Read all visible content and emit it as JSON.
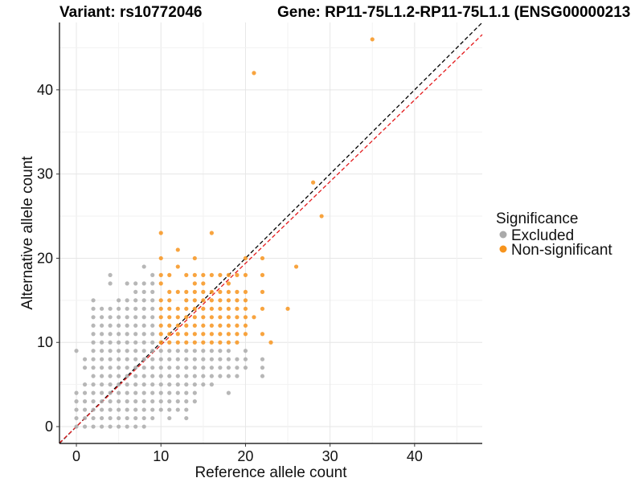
{
  "chart_data": {
    "type": "scatter",
    "title_left": "Variant: rs10772046",
    "title_right": "Gene: RP11-75L1.2-RP11-75L1.1 (ENSG00000213",
    "xlabel": "Reference allele count",
    "ylabel": "Alternative allele count",
    "xlim": [
      -2,
      48
    ],
    "ylim": [
      -2,
      48
    ],
    "x_ticks": [
      0,
      10,
      20,
      30,
      40
    ],
    "y_ticks": [
      0,
      10,
      20,
      30,
      40
    ],
    "grid": true,
    "legend": {
      "title": "Significance",
      "position": "right",
      "entries": [
        {
          "name": "Excluded",
          "color": "#aaaaaa"
        },
        {
          "name": "Non-significant",
          "color": "#f7941d"
        }
      ]
    },
    "reference_lines": [
      {
        "name": "identity",
        "slope": 1.0,
        "intercept": 0,
        "color": "#000000",
        "style": "dashed"
      },
      {
        "name": "fit",
        "slope": 0.97,
        "intercept": 0,
        "color": "#e41a1c",
        "style": "dashed"
      }
    ],
    "series": [
      {
        "name": "Excluded",
        "color": "#aaaaaa",
        "points": [
          [
            0,
            0
          ],
          [
            0,
            1
          ],
          [
            0,
            2
          ],
          [
            0,
            3
          ],
          [
            0,
            4
          ],
          [
            0,
            9
          ],
          [
            1,
            0
          ],
          [
            1,
            1
          ],
          [
            1,
            2
          ],
          [
            1,
            3
          ],
          [
            1,
            4
          ],
          [
            1,
            5
          ],
          [
            1,
            7
          ],
          [
            1,
            8
          ],
          [
            2,
            0
          ],
          [
            2,
            1
          ],
          [
            2,
            2
          ],
          [
            2,
            3
          ],
          [
            2,
            4
          ],
          [
            2,
            5
          ],
          [
            2,
            6
          ],
          [
            2,
            7
          ],
          [
            2,
            8
          ],
          [
            2,
            9
          ],
          [
            2,
            10
          ],
          [
            2,
            11
          ],
          [
            2,
            12
          ],
          [
            2,
            13
          ],
          [
            2,
            14
          ],
          [
            2,
            15
          ],
          [
            3,
            0
          ],
          [
            3,
            1
          ],
          [
            3,
            2
          ],
          [
            3,
            3
          ],
          [
            3,
            4
          ],
          [
            3,
            5
          ],
          [
            3,
            6
          ],
          [
            3,
            7
          ],
          [
            3,
            8
          ],
          [
            3,
            9
          ],
          [
            3,
            10
          ],
          [
            3,
            11
          ],
          [
            3,
            12
          ],
          [
            3,
            13
          ],
          [
            3,
            14
          ],
          [
            4,
            0
          ],
          [
            4,
            1
          ],
          [
            4,
            2
          ],
          [
            4,
            3
          ],
          [
            4,
            4
          ],
          [
            4,
            5
          ],
          [
            4,
            6
          ],
          [
            4,
            7
          ],
          [
            4,
            8
          ],
          [
            4,
            9
          ],
          [
            4,
            10
          ],
          [
            4,
            11
          ],
          [
            4,
            12
          ],
          [
            4,
            13
          ],
          [
            4,
            14
          ],
          [
            4,
            17
          ],
          [
            4,
            18
          ],
          [
            5,
            0
          ],
          [
            5,
            1
          ],
          [
            5,
            2
          ],
          [
            5,
            3
          ],
          [
            5,
            4
          ],
          [
            5,
            5
          ],
          [
            5,
            6
          ],
          [
            5,
            7
          ],
          [
            5,
            8
          ],
          [
            5,
            9
          ],
          [
            5,
            10
          ],
          [
            5,
            11
          ],
          [
            5,
            12
          ],
          [
            5,
            13
          ],
          [
            5,
            14
          ],
          [
            5,
            15
          ],
          [
            6,
            0
          ],
          [
            6,
            1
          ],
          [
            6,
            2
          ],
          [
            6,
            3
          ],
          [
            6,
            4
          ],
          [
            6,
            5
          ],
          [
            6,
            6
          ],
          [
            6,
            7
          ],
          [
            6,
            8
          ],
          [
            6,
            9
          ],
          [
            6,
            10
          ],
          [
            6,
            11
          ],
          [
            6,
            12
          ],
          [
            6,
            13
          ],
          [
            6,
            14
          ],
          [
            6,
            15
          ],
          [
            6,
            17
          ],
          [
            7,
            0
          ],
          [
            7,
            1
          ],
          [
            7,
            2
          ],
          [
            7,
            3
          ],
          [
            7,
            4
          ],
          [
            7,
            5
          ],
          [
            7,
            6
          ],
          [
            7,
            7
          ],
          [
            7,
            8
          ],
          [
            7,
            9
          ],
          [
            7,
            10
          ],
          [
            7,
            11
          ],
          [
            7,
            12
          ],
          [
            7,
            13
          ],
          [
            7,
            14
          ],
          [
            7,
            15
          ],
          [
            7,
            16
          ],
          [
            7,
            17
          ],
          [
            8,
            0
          ],
          [
            8,
            1
          ],
          [
            8,
            2
          ],
          [
            8,
            3
          ],
          [
            8,
            4
          ],
          [
            8,
            5
          ],
          [
            8,
            6
          ],
          [
            8,
            7
          ],
          [
            8,
            8
          ],
          [
            8,
            9
          ],
          [
            8,
            10
          ],
          [
            8,
            11
          ],
          [
            8,
            12
          ],
          [
            8,
            13
          ],
          [
            8,
            14
          ],
          [
            8,
            15
          ],
          [
            8,
            16
          ],
          [
            8,
            17
          ],
          [
            8,
            19
          ],
          [
            9,
            1
          ],
          [
            9,
            2
          ],
          [
            9,
            3
          ],
          [
            9,
            4
          ],
          [
            9,
            5
          ],
          [
            9,
            6
          ],
          [
            9,
            7
          ],
          [
            9,
            8
          ],
          [
            9,
            9
          ],
          [
            9,
            10
          ],
          [
            9,
            11
          ],
          [
            9,
            12
          ],
          [
            9,
            13
          ],
          [
            9,
            14
          ],
          [
            9,
            15
          ],
          [
            9,
            16
          ],
          [
            9,
            17
          ],
          [
            9,
            18
          ],
          [
            10,
            2
          ],
          [
            10,
            3
          ],
          [
            10,
            4
          ],
          [
            10,
            5
          ],
          [
            10,
            6
          ],
          [
            10,
            7
          ],
          [
            10,
            8
          ],
          [
            10,
            9
          ],
          [
            11,
            1
          ],
          [
            11,
            2
          ],
          [
            11,
            3
          ],
          [
            11,
            4
          ],
          [
            11,
            5
          ],
          [
            11,
            6
          ],
          [
            11,
            7
          ],
          [
            11,
            8
          ],
          [
            11,
            9
          ],
          [
            12,
            2
          ],
          [
            12,
            3
          ],
          [
            12,
            4
          ],
          [
            12,
            5
          ],
          [
            12,
            6
          ],
          [
            12,
            7
          ],
          [
            12,
            8
          ],
          [
            12,
            9
          ],
          [
            13,
            1
          ],
          [
            13,
            2
          ],
          [
            13,
            3
          ],
          [
            13,
            4
          ],
          [
            13,
            5
          ],
          [
            13,
            6
          ],
          [
            13,
            7
          ],
          [
            13,
            8
          ],
          [
            13,
            9
          ],
          [
            14,
            3
          ],
          [
            14,
            4
          ],
          [
            14,
            5
          ],
          [
            14,
            6
          ],
          [
            14,
            7
          ],
          [
            14,
            8
          ],
          [
            14,
            9
          ],
          [
            15,
            5
          ],
          [
            15,
            6
          ],
          [
            15,
            7
          ],
          [
            15,
            8
          ],
          [
            15,
            9
          ],
          [
            16,
            5
          ],
          [
            16,
            6
          ],
          [
            16,
            7
          ],
          [
            16,
            8
          ],
          [
            16,
            9
          ],
          [
            17,
            6
          ],
          [
            17,
            7
          ],
          [
            17,
            8
          ],
          [
            17,
            9
          ],
          [
            18,
            4
          ],
          [
            18,
            6
          ],
          [
            18,
            7
          ],
          [
            18,
            8
          ],
          [
            18,
            9
          ],
          [
            19,
            6
          ],
          [
            19,
            7
          ],
          [
            19,
            8
          ],
          [
            20,
            7
          ],
          [
            20,
            8
          ],
          [
            20,
            9
          ],
          [
            22,
            6
          ],
          [
            22,
            7
          ],
          [
            22,
            8
          ]
        ]
      },
      {
        "name": "Non-significant",
        "color": "#f7941d",
        "points": [
          [
            10,
            10
          ],
          [
            10,
            11
          ],
          [
            10,
            12
          ],
          [
            10,
            13
          ],
          [
            10,
            14
          ],
          [
            10,
            15
          ],
          [
            10,
            17
          ],
          [
            10,
            18
          ],
          [
            10,
            20
          ],
          [
            10,
            23
          ],
          [
            11,
            10
          ],
          [
            11,
            11
          ],
          [
            11,
            12
          ],
          [
            11,
            13
          ],
          [
            11,
            14
          ],
          [
            11,
            15
          ],
          [
            11,
            16
          ],
          [
            11,
            18
          ],
          [
            12,
            10
          ],
          [
            12,
            11
          ],
          [
            12,
            12
          ],
          [
            12,
            13
          ],
          [
            12,
            14
          ],
          [
            12,
            16
          ],
          [
            12,
            19
          ],
          [
            12,
            21
          ],
          [
            13,
            10
          ],
          [
            13,
            11
          ],
          [
            13,
            12
          ],
          [
            13,
            13
          ],
          [
            13,
            14
          ],
          [
            13,
            15
          ],
          [
            13,
            16
          ],
          [
            13,
            18
          ],
          [
            14,
            10
          ],
          [
            14,
            11
          ],
          [
            14,
            12
          ],
          [
            14,
            13
          ],
          [
            14,
            14
          ],
          [
            14,
            15
          ],
          [
            14,
            16
          ],
          [
            14,
            17
          ],
          [
            14,
            18
          ],
          [
            14,
            20
          ],
          [
            15,
            10
          ],
          [
            15,
            11
          ],
          [
            15,
            12
          ],
          [
            15,
            13
          ],
          [
            15,
            14
          ],
          [
            15,
            15
          ],
          [
            15,
            16
          ],
          [
            15,
            17
          ],
          [
            15,
            18
          ],
          [
            16,
            10
          ],
          [
            16,
            11
          ],
          [
            16,
            12
          ],
          [
            16,
            13
          ],
          [
            16,
            14
          ],
          [
            16,
            15
          ],
          [
            16,
            16
          ],
          [
            16,
            18
          ],
          [
            16,
            23
          ],
          [
            17,
            10
          ],
          [
            17,
            11
          ],
          [
            17,
            12
          ],
          [
            17,
            13
          ],
          [
            17,
            14
          ],
          [
            17,
            15
          ],
          [
            17,
            16
          ],
          [
            17,
            18
          ],
          [
            18,
            10
          ],
          [
            18,
            11
          ],
          [
            18,
            12
          ],
          [
            18,
            13
          ],
          [
            18,
            14
          ],
          [
            18,
            15
          ],
          [
            18,
            16
          ],
          [
            18,
            17
          ],
          [
            18,
            18
          ],
          [
            19,
            10
          ],
          [
            19,
            11
          ],
          [
            19,
            12
          ],
          [
            19,
            13
          ],
          [
            19,
            14
          ],
          [
            19,
            15
          ],
          [
            19,
            16
          ],
          [
            19,
            18
          ],
          [
            20,
            11
          ],
          [
            20,
            12
          ],
          [
            20,
            13
          ],
          [
            20,
            14
          ],
          [
            20,
            15
          ],
          [
            20,
            16
          ],
          [
            20,
            18
          ],
          [
            20,
            20
          ],
          [
            21,
            13
          ],
          [
            21,
            42
          ],
          [
            22,
            11
          ],
          [
            22,
            14
          ],
          [
            22,
            16
          ],
          [
            22,
            18
          ],
          [
            22,
            20
          ],
          [
            23,
            10
          ],
          [
            25,
            14
          ],
          [
            26,
            19
          ],
          [
            28,
            29
          ],
          [
            29,
            25
          ],
          [
            35,
            46
          ]
        ]
      }
    ]
  }
}
